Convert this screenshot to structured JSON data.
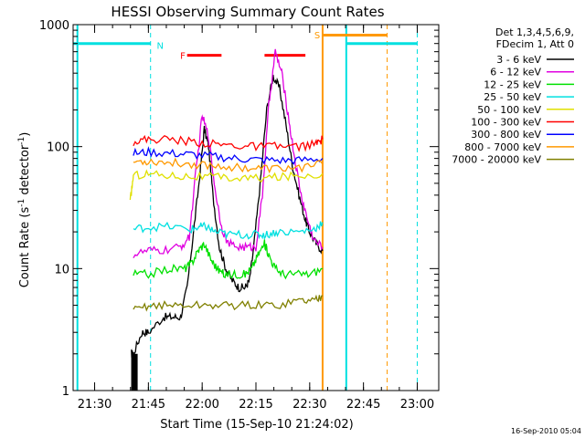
{
  "chart_data": {
    "type": "line",
    "title": "HESSI Observing Summary Count Rates",
    "xlabel": "Start Time (15-Sep-10 21:24:02)",
    "ylabel": "Count Rate (s",
    "ylabel_sup": "-1",
    "ylabel_rest": " detector",
    "ylabel_tail": ")",
    "footer": "16-Sep-2010 05:04",
    "xlim": [
      21.4,
      23.1
    ],
    "ylim": [
      1,
      1000
    ],
    "yscale": "log",
    "x_ticks": [
      {
        "value": 21.5,
        "label": "21:30"
      },
      {
        "value": 21.75,
        "label": "21:45"
      },
      {
        "value": 22.0,
        "label": "22:00"
      },
      {
        "value": 22.25,
        "label": "22:15"
      },
      {
        "value": 22.5,
        "label": "22:30"
      },
      {
        "value": 22.75,
        "label": "22:45"
      },
      {
        "value": 23.0,
        "label": "23:00"
      }
    ],
    "y_ticks": [
      {
        "value": 1,
        "label": "1"
      },
      {
        "value": 10,
        "label": "10"
      },
      {
        "value": 100,
        "label": "100"
      },
      {
        "value": 1000,
        "label": "1000"
      }
    ],
    "legend_header": [
      "Det 1,3,4,5,6,9,",
      "FDecim 1, Att 0"
    ],
    "series": [
      {
        "name": "3 - 6 keV",
        "color": "#000000",
        "x": [
          21.67,
          21.68,
          21.72,
          21.75,
          21.82,
          21.86,
          21.9,
          21.93,
          21.96,
          21.99,
          22.01,
          22.03,
          22.05,
          22.08,
          22.11,
          22.14,
          22.17,
          22.2,
          22.22,
          22.24,
          22.27,
          22.3,
          22.33,
          22.36,
          22.39,
          22.42,
          22.45,
          22.48,
          22.5,
          22.53,
          22.56
        ],
        "y": [
          2,
          2,
          3,
          3,
          4,
          4,
          4,
          7,
          20,
          60,
          140,
          100,
          40,
          15,
          10,
          8,
          7,
          7,
          8,
          15,
          50,
          200,
          380,
          300,
          150,
          70,
          40,
          25,
          20,
          16,
          14
        ]
      },
      {
        "name": "6 - 12 keV",
        "color": "#e000e0",
        "x": [
          21.68,
          21.75,
          21.82,
          21.9,
          21.94,
          21.97,
          22.0,
          22.03,
          22.06,
          22.09,
          22.12,
          22.17,
          22.22,
          22.25,
          22.28,
          22.31,
          22.34,
          22.37,
          22.4,
          22.43,
          22.46,
          22.49,
          22.52,
          22.56
        ],
        "y": [
          13,
          14,
          14,
          15,
          18,
          60,
          180,
          120,
          45,
          22,
          16,
          15,
          15,
          15,
          40,
          220,
          600,
          400,
          180,
          80,
          40,
          25,
          17,
          15
        ]
      },
      {
        "name": "12 - 25 keV",
        "color": "#00e000",
        "x": [
          21.68,
          21.75,
          21.85,
          21.92,
          21.95,
          21.98,
          22.01,
          22.04,
          22.07,
          22.1,
          22.15,
          22.2,
          22.23,
          22.26,
          22.29,
          22.31,
          22.34,
          22.38,
          22.44,
          22.5,
          22.56
        ],
        "y": [
          9,
          9,
          10,
          10,
          11,
          14,
          16,
          12,
          10,
          9,
          9,
          9,
          10,
          13,
          16,
          13,
          10,
          9,
          9,
          9,
          10
        ]
      },
      {
        "name": "25 - 50 keV",
        "color": "#00e0e0",
        "x": [
          21.68,
          21.75,
          21.85,
          21.95,
          21.99,
          22.02,
          22.06,
          22.12,
          22.2,
          22.26,
          22.3,
          22.35,
          22.45,
          22.52,
          22.56
        ],
        "y": [
          21,
          22,
          22,
          21,
          22,
          22,
          20,
          19,
          19,
          19,
          19,
          20,
          20,
          21,
          24
        ]
      },
      {
        "name": "50 - 100 keV",
        "color": "#e0e000",
        "x": [
          21.665,
          21.68,
          21.75,
          21.85,
          21.95,
          22.05,
          22.15,
          22.25,
          22.35,
          22.45,
          22.56
        ],
        "y": [
          35,
          58,
          60,
          58,
          57,
          56,
          55,
          55,
          56,
          58,
          60
        ]
      },
      {
        "name": "100 - 300 keV",
        "color": "#ff0000",
        "x": [
          21.68,
          21.75,
          21.85,
          21.95,
          22.05,
          22.15,
          22.25,
          22.35,
          22.45,
          22.53,
          22.56
        ],
        "y": [
          110,
          115,
          115,
          110,
          105,
          102,
          100,
          100,
          100,
          105,
          115
        ]
      },
      {
        "name": "300 - 800 keV",
        "color": "#0000ff",
        "x": [
          21.68,
          21.75,
          21.85,
          21.95,
          22.05,
          22.15,
          22.25,
          22.35,
          22.45,
          22.56
        ],
        "y": [
          88,
          90,
          88,
          86,
          83,
          80,
          78,
          77,
          77,
          80
        ]
      },
      {
        "name": "800 - 7000 keV",
        "color": "#ff9900",
        "x": [
          21.68,
          21.75,
          21.85,
          21.95,
          22.05,
          22.15,
          22.25,
          22.35,
          22.45,
          22.56
        ],
        "y": [
          75,
          76,
          74,
          72,
          70,
          68,
          66,
          66,
          67,
          72
        ]
      },
      {
        "name": "7000 - 20000 keV",
        "color": "#808000",
        "x": [
          21.68,
          21.75,
          21.85,
          21.95,
          22.05,
          22.15,
          22.25,
          22.35,
          22.45,
          22.52,
          22.56
        ],
        "y": [
          4.5,
          5,
          5,
          5,
          5,
          5,
          5,
          5,
          5.5,
          5.5,
          6
        ]
      }
    ],
    "annotations": [
      {
        "label": "N",
        "color": "#00e0e0",
        "x": 21.805,
        "y": 680
      },
      {
        "label": "F",
        "color": "#ff0000",
        "x": 21.91,
        "y": 560
      },
      {
        "label": "S",
        "color": "#ff9900",
        "x": 22.535,
        "y": 830
      }
    ],
    "intervals": [
      {
        "name": "night",
        "color": "#00e0e0",
        "x0": 21.4,
        "x1": 21.76,
        "y": 700
      },
      {
        "name": "night",
        "color": "#00e0e0",
        "x0": 22.67,
        "x1": 23.0,
        "y": 700
      },
      {
        "name": "flare",
        "color": "#ff0000",
        "x0": 21.93,
        "x1": 22.09,
        "y": 560
      },
      {
        "name": "flare",
        "color": "#ff0000",
        "x0": 22.29,
        "x1": 22.48,
        "y": 560
      },
      {
        "name": "saa",
        "color": "#ff9900",
        "x0": 22.56,
        "x1": 22.86,
        "y": 820
      }
    ],
    "vlines": [
      {
        "x": 21.42,
        "color": "#00e0e0",
        "dash": false
      },
      {
        "x": 21.76,
        "color": "#00e0e0",
        "dash": true
      },
      {
        "x": 22.56,
        "color": "#ff9900",
        "dash": false
      },
      {
        "x": 22.67,
        "color": "#00e0e0",
        "dash": false
      },
      {
        "x": 22.86,
        "color": "#ff9900",
        "dash": true
      },
      {
        "x": 23.0,
        "color": "#00e0e0",
        "dash": true
      }
    ]
  }
}
